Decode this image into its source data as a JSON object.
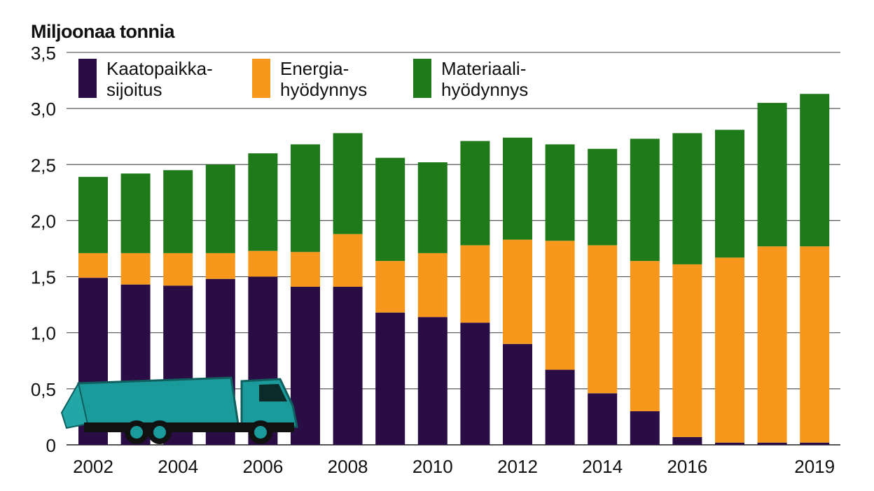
{
  "chart_data": {
    "type": "bar",
    "stacked": true,
    "ylabel": "Miljoonaa tonnia",
    "ylim": [
      0,
      3.5
    ],
    "yticks": [
      "0",
      "0,5",
      "1,0",
      "1,5",
      "2,0",
      "2,5",
      "3,0",
      "3,5"
    ],
    "grid": true,
    "legend_position": "top-left",
    "categories": [
      "2002",
      "2003",
      "2004",
      "2005",
      "2006",
      "2007",
      "2008",
      "2009",
      "2010",
      "2011",
      "2012",
      "2013",
      "2014",
      "2015",
      "2016",
      "2017",
      "2018",
      "2019"
    ],
    "xtick_labels": [
      "2002",
      "2004",
      "2006",
      "2008",
      "2010",
      "2012",
      "2014",
      "2016",
      "2019"
    ],
    "series": [
      {
        "name": "Kaatopaikka-sijoitus",
        "legend_lines": [
          "Kaatopaikka-",
          "sijoitus"
        ],
        "color": "#2a0d45",
        "values": [
          1.49,
          1.43,
          1.42,
          1.48,
          1.5,
          1.41,
          1.41,
          1.18,
          1.14,
          1.09,
          0.9,
          0.67,
          0.46,
          0.3,
          0.07,
          0.02,
          0.02,
          0.02
        ]
      },
      {
        "name": "Energia-hyödynnys",
        "legend_lines": [
          "Energia-",
          "hyödynnys"
        ],
        "color": "#f7981d",
        "values": [
          0.22,
          0.28,
          0.29,
          0.23,
          0.23,
          0.31,
          0.47,
          0.46,
          0.57,
          0.69,
          0.93,
          1.15,
          1.32,
          1.34,
          1.54,
          1.65,
          1.75,
          1.75
        ]
      },
      {
        "name": "Materiaali-hyödynnys",
        "legend_lines": [
          "Materiaali-",
          "hyödynnys"
        ],
        "color": "#1f7a1a",
        "values": [
          0.68,
          0.71,
          0.74,
          0.79,
          0.87,
          0.96,
          0.9,
          0.92,
          0.81,
          0.93,
          0.91,
          0.86,
          0.86,
          1.09,
          1.17,
          1.14,
          1.28,
          1.36
        ]
      }
    ],
    "decoration": "garbage-truck-illustration"
  }
}
